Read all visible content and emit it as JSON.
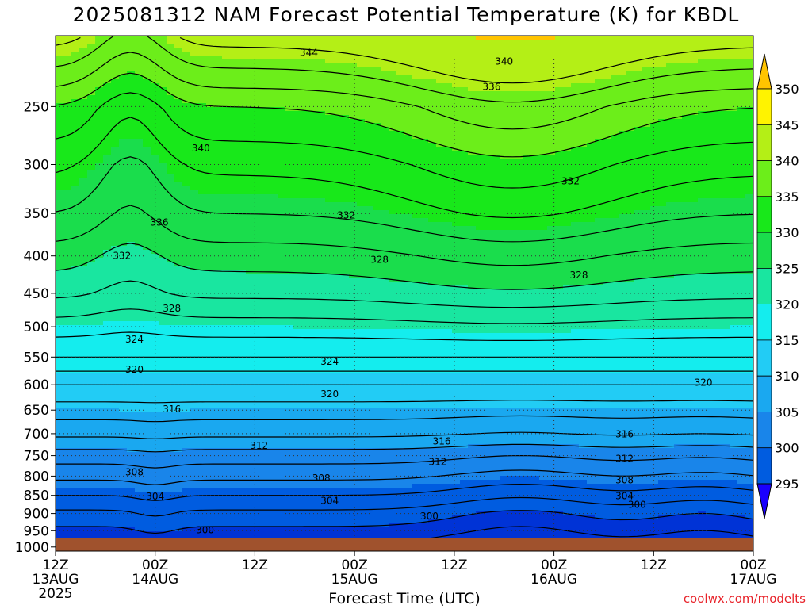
{
  "title": "2025081312 NAM Forecast Potential Temperature (K) for KBDL",
  "credit": "coolwx.com/modelts",
  "chart_data": {
    "type": "heatmap",
    "title": "2025081312 NAM Forecast Potential Temperature (K) for KBDL",
    "xlabel": "Forecast Time (UTC)",
    "ylabel": "",
    "x_ticks": [
      {
        "hour": 0,
        "label": "12Z",
        "sub": "13AUG",
        "sub2": "2025"
      },
      {
        "hour": 12,
        "label": "00Z",
        "sub": "14AUG",
        "sub2": ""
      },
      {
        "hour": 24,
        "label": "12Z",
        "sub": "",
        "sub2": ""
      },
      {
        "hour": 36,
        "label": "00Z",
        "sub": "15AUG",
        "sub2": ""
      },
      {
        "hour": 48,
        "label": "12Z",
        "sub": "",
        "sub2": ""
      },
      {
        "hour": 60,
        "label": "00Z",
        "sub": "16AUG",
        "sub2": ""
      },
      {
        "hour": 72,
        "label": "12Z",
        "sub": "",
        "sub2": ""
      },
      {
        "hour": 84,
        "label": "00Z",
        "sub": "17AUG",
        "sub2": ""
      }
    ],
    "xlim_hours": [
      0,
      84
    ],
    "y_ticks": [
      "250",
      "300",
      "350",
      "400",
      "450",
      "500",
      "550",
      "600",
      "650",
      "700",
      "750",
      "800",
      "850",
      "900",
      "950",
      "1000"
    ],
    "y_tick_values": [
      250,
      300,
      350,
      400,
      450,
      500,
      550,
      600,
      650,
      700,
      750,
      800,
      850,
      900,
      950,
      1000
    ],
    "ylim_hpa": [
      200,
      1013
    ],
    "y_scale": "log",
    "grid": true,
    "colorbar": {
      "labels": [
        "295",
        "300",
        "305",
        "310",
        "315",
        "320",
        "325",
        "330",
        "335",
        "340",
        "345",
        "350"
      ],
      "levels": [
        295,
        300,
        305,
        310,
        315,
        320,
        325,
        330,
        335,
        340,
        345,
        350
      ],
      "colors": [
        "#1a00ff",
        "#0033d6",
        "#005ce0",
        "#1985ea",
        "#1aa8f0",
        "#22ccf5",
        "#14edee",
        "#19e6a0",
        "#1add4c",
        "#18e81a",
        "#6cee1a",
        "#b4ef16",
        "#fff300",
        "#ffc400"
      ]
    },
    "contour_labels": [
      {
        "text": "344",
        "t": 30.5,
        "p": 211
      },
      {
        "text": "340",
        "t": 54,
        "p": 217
      },
      {
        "text": "336",
        "t": 52.5,
        "p": 235
      },
      {
        "text": "340",
        "t": 17.5,
        "p": 285
      },
      {
        "text": "332",
        "t": 62,
        "p": 316
      },
      {
        "text": "336",
        "t": 12.5,
        "p": 360
      },
      {
        "text": "332",
        "t": 35,
        "p": 352
      },
      {
        "text": "332",
        "t": 8,
        "p": 400
      },
      {
        "text": "328",
        "t": 39,
        "p": 405
      },
      {
        "text": "328",
        "t": 63,
        "p": 425
      },
      {
        "text": "328",
        "t": 14,
        "p": 472
      },
      {
        "text": "324",
        "t": 9.5,
        "p": 520
      },
      {
        "text": "324",
        "t": 33,
        "p": 558
      },
      {
        "text": "320",
        "t": 9.5,
        "p": 572
      },
      {
        "text": "320",
        "t": 33,
        "p": 618
      },
      {
        "text": "320",
        "t": 78,
        "p": 596
      },
      {
        "text": "316",
        "t": 14,
        "p": 648
      },
      {
        "text": "316",
        "t": 46.5,
        "p": 717
      },
      {
        "text": "316",
        "t": 68.5,
        "p": 701
      },
      {
        "text": "312",
        "t": 24.5,
        "p": 727
      },
      {
        "text": "312",
        "t": 46,
        "p": 765
      },
      {
        "text": "312",
        "t": 68.5,
        "p": 757
      },
      {
        "text": "308",
        "t": 9.5,
        "p": 790
      },
      {
        "text": "308",
        "t": 32,
        "p": 805
      },
      {
        "text": "308",
        "t": 68.5,
        "p": 810
      },
      {
        "text": "304",
        "t": 12,
        "p": 853
      },
      {
        "text": "304",
        "t": 33,
        "p": 865
      },
      {
        "text": "304",
        "t": 68.5,
        "p": 852
      },
      {
        "text": "300",
        "t": 70,
        "p": 875
      },
      {
        "text": "300",
        "t": 45,
        "p": 908
      },
      {
        "text": "300",
        "t": 18,
        "p": 948
      }
    ]
  }
}
